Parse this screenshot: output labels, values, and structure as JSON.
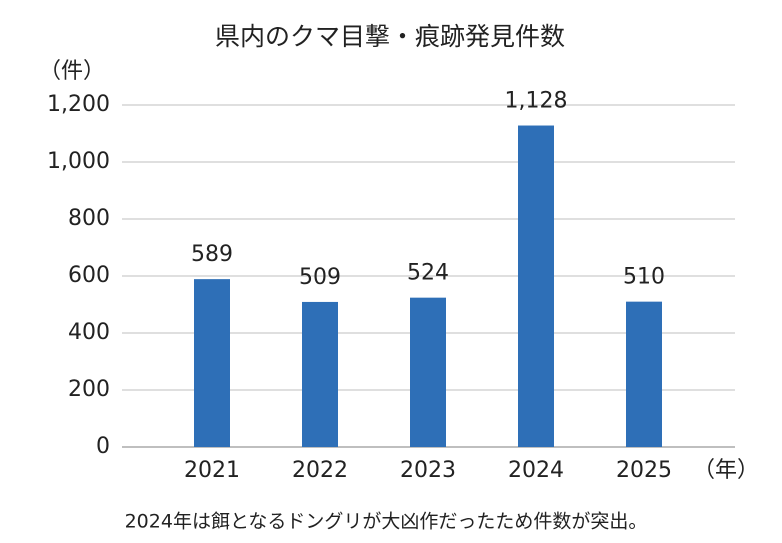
{
  "chart_data": {
    "type": "bar",
    "title": "県内のクマ目撃・痕跡発見件数",
    "y_unit": "（件）",
    "x_unit": "（年）",
    "note": "2024年は餌となるドングリが大凶作だったため件数が突出。",
    "categories": [
      "2021",
      "2022",
      "2023",
      "2024",
      "2025"
    ],
    "values": [
      589,
      509,
      524,
      1128,
      510
    ],
    "value_labels": [
      "589",
      "509",
      "524",
      "1,128",
      "510"
    ],
    "color": "#2e6fb7",
    "ylim": [
      0,
      1200
    ],
    "yticks": [
      0,
      200,
      400,
      600,
      800,
      {
        "value": 1000,
        "label": "1,000"
      },
      {
        "value": 1200,
        "label": "1,200"
      }
    ],
    "grid": true
  }
}
